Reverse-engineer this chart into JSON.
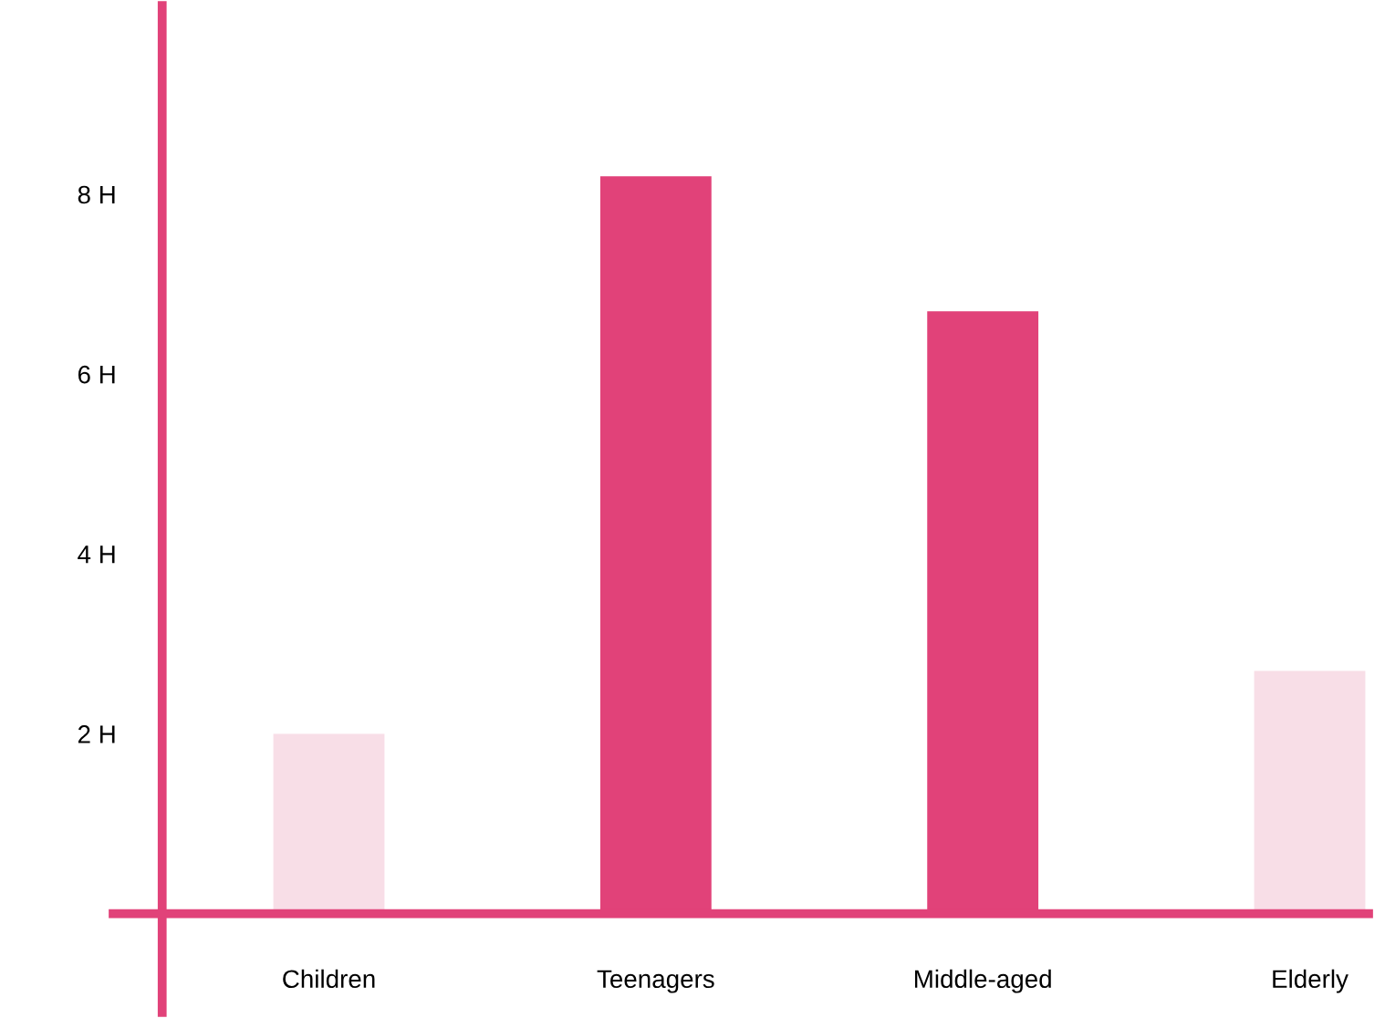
{
  "chart_data": {
    "type": "bar",
    "categories": [
      "Children",
      "Teenagers",
      "Middle-aged",
      "Elderly"
    ],
    "values": [
      2.0,
      8.2,
      6.7,
      2.7
    ],
    "colors": [
      "#f8dee7",
      "#e14279",
      "#e14279",
      "#f8dee7"
    ],
    "ylim": [
      -1.1,
      10.1
    ],
    "yticks": [
      {
        "value": 2,
        "label": "2 H"
      },
      {
        "value": 4,
        "label": "4 H"
      },
      {
        "value": 6,
        "label": "6 H"
      },
      {
        "value": 8,
        "label": "8 H"
      }
    ],
    "grid": false,
    "legend": false
  }
}
